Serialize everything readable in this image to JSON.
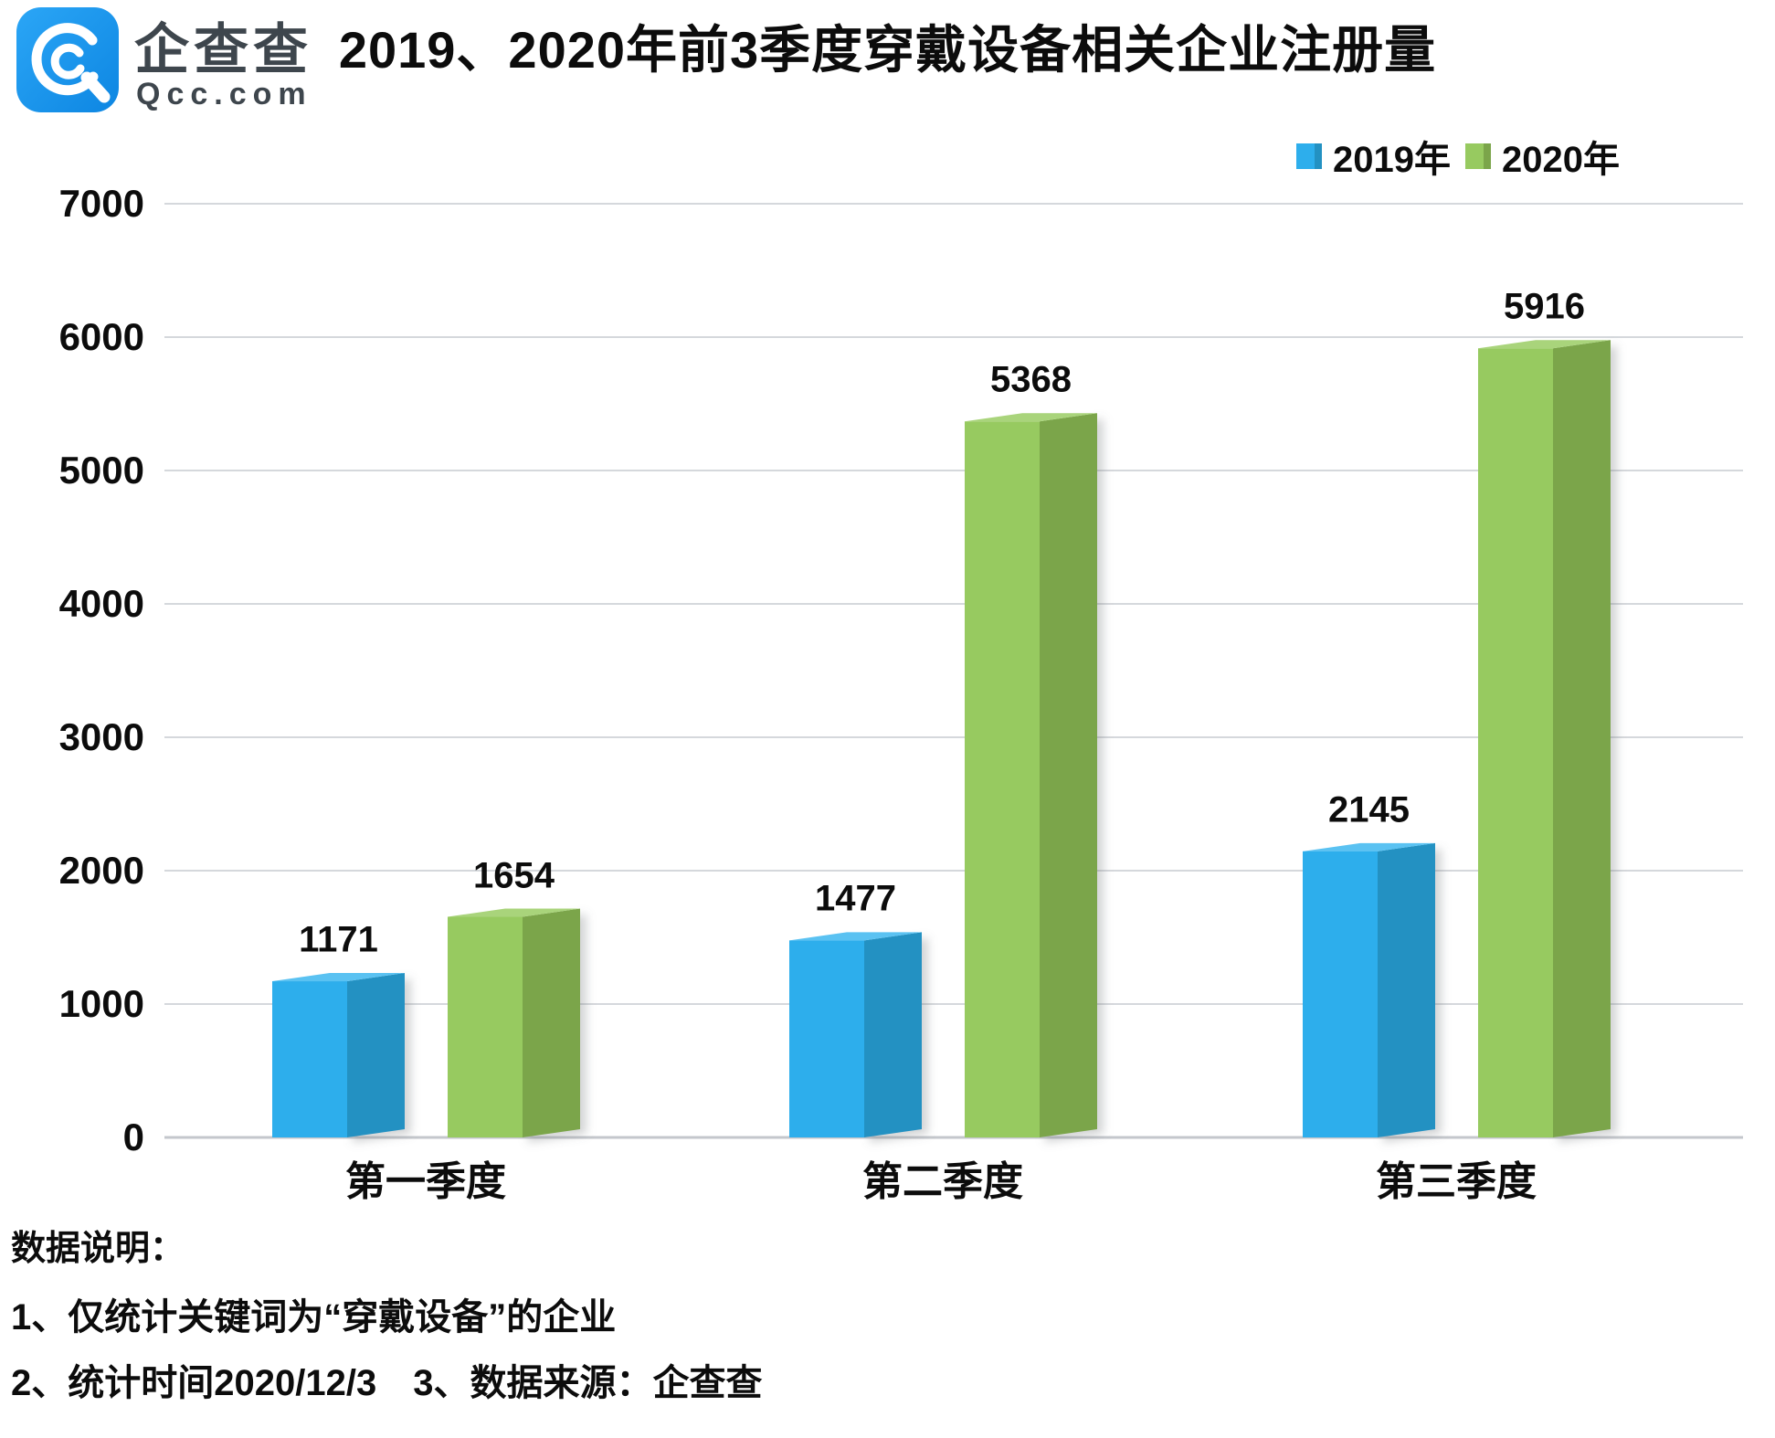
{
  "logo": {
    "brand": "企查查",
    "domain": "Qcc.com",
    "icon": "qcc-spiral-q-icon",
    "icon_color": "#1E9BF0",
    "text_color": "#3E464D"
  },
  "chart_data": {
    "type": "bar",
    "title": "2019、2020年前3季度穿戴设备相关企业注册量",
    "categories": [
      "第一季度",
      "第二季度",
      "第三季度"
    ],
    "series": [
      {
        "name": "2019年",
        "values": [
          1171,
          1477,
          2145
        ],
        "color_front": "#2DAEEC",
        "color_side": "#2391C2",
        "color_top": "#5AC2F2"
      },
      {
        "name": "2020年",
        "values": [
          1654,
          5368,
          5916
        ],
        "color_front": "#97CA60",
        "color_side": "#7BA54A",
        "color_top": "#A9D47B"
      }
    ],
    "xlabel": "",
    "ylabel": "",
    "ylim": [
      0,
      7000
    ],
    "ytick_step": 1000,
    "grid": true,
    "legend_position": "top-right",
    "bar_style": "3d-oblique"
  },
  "notes": {
    "heading": "数据说明：",
    "line1": "1、仅统计关键词为“穿戴设备”的企业",
    "line2": "2、统计时间2020/12/3　3、数据来源：企查查"
  },
  "colors": {
    "grid": "#D5D8DC",
    "axis": "#C4C7CC",
    "text": "#0C0C0C",
    "shadow": "rgba(110,115,120,0.30)"
  }
}
